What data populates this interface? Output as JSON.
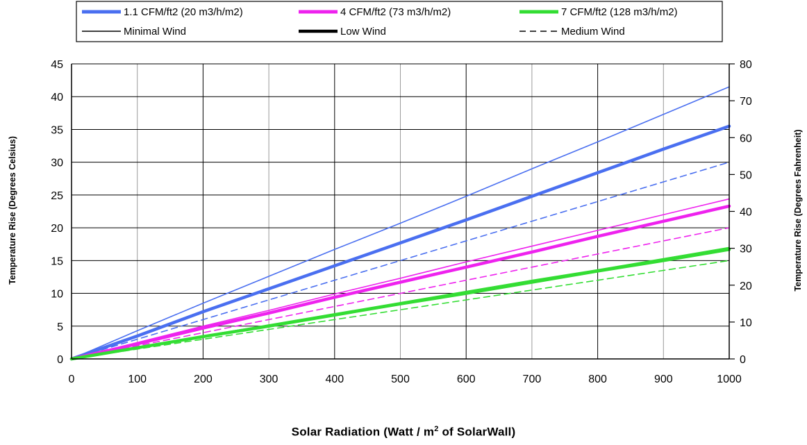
{
  "chart_data": {
    "type": "line",
    "xlabel_main": "Solar Radiation (Watt / m",
    "xlabel_sup": "2",
    "xlabel_tail": " of SolarWall)",
    "ylabel_left": "Temperature Rise (Degrees Celsius)",
    "ylabel_right": "Temperature Rise (Degrees Fahrenheit)",
    "xlim": [
      0,
      1000
    ],
    "ylim_left": [
      0,
      45
    ],
    "ylim_right": [
      0,
      80
    ],
    "x_ticks": [
      "0",
      "100",
      "200",
      "300",
      "400",
      "500",
      "600",
      "700",
      "800",
      "900",
      "1000"
    ],
    "y_ticks_left": [
      "0",
      "5",
      "10",
      "15",
      "20",
      "25",
      "30",
      "35",
      "40",
      "45"
    ],
    "y_ticks_right": [
      "0",
      "10",
      "20",
      "30",
      "40",
      "50",
      "60",
      "70",
      "80"
    ],
    "grid": true,
    "legend": {
      "placement": "top",
      "flow_items": [
        {
          "label": "1.1 CFM/ft2 (20 m3/h/m2)",
          "color": "#4a6ff0"
        },
        {
          "label": "4 CFM/ft2 (73 m3/h/m2)",
          "color": "#ee22ee"
        },
        {
          "label": "7 CFM/ft2 (128 m3/h/m2)",
          "color": "#33dd33"
        }
      ],
      "wind_items": [
        {
          "label": "Minimal Wind",
          "style": "thin"
        },
        {
          "label": "Low Wind",
          "style": "thick"
        },
        {
          "label": "Medium Wind",
          "style": "dashed"
        }
      ]
    },
    "series": [
      {
        "flow": "1.1 CFM/ft2 (20 m3/h/m2)",
        "wind": "Minimal Wind",
        "color": "#4a6ff0",
        "style": "thin",
        "x": [
          0,
          100,
          200,
          300,
          400,
          500,
          600,
          700,
          800,
          900,
          1000
        ],
        "y": [
          0,
          4.3,
          8.5,
          12.6,
          16.7,
          20.7,
          24.8,
          29.0,
          33.1,
          37.3,
          41.5
        ]
      },
      {
        "flow": "1.1 CFM/ft2 (20 m3/h/m2)",
        "wind": "Low Wind",
        "color": "#4a6ff0",
        "style": "thick",
        "x": [
          0,
          100,
          200,
          300,
          400,
          500,
          600,
          700,
          800,
          900,
          1000
        ],
        "y": [
          0,
          3.5,
          7.2,
          10.7,
          14.2,
          17.7,
          21.2,
          24.8,
          28.4,
          32.0,
          35.5
        ]
      },
      {
        "flow": "1.1 CFM/ft2 (20 m3/h/m2)",
        "wind": "Medium Wind",
        "color": "#4a6ff0",
        "style": "dashed",
        "x": [
          0,
          100,
          200,
          300,
          400,
          500,
          600,
          700,
          800,
          900,
          1000
        ],
        "y": [
          0,
          3.0,
          6.0,
          9.0,
          12.0,
          15.0,
          18.0,
          21.0,
          24.0,
          27.0,
          30.0
        ]
      },
      {
        "flow": "4 CFM/ft2 (73 m3/h/m2)",
        "wind": "Minimal Wind",
        "color": "#ee22ee",
        "style": "thin",
        "x": [
          0,
          100,
          200,
          300,
          400,
          500,
          600,
          700,
          800,
          900,
          1000
        ],
        "y": [
          0,
          2.5,
          5.0,
          7.4,
          9.9,
          12.3,
          14.8,
          17.2,
          19.6,
          22.0,
          24.4
        ]
      },
      {
        "flow": "4 CFM/ft2 (73 m3/h/m2)",
        "wind": "Low Wind",
        "color": "#ee22ee",
        "style": "thick",
        "x": [
          0,
          100,
          200,
          300,
          400,
          500,
          600,
          700,
          800,
          900,
          1000
        ],
        "y": [
          0,
          2.3,
          4.7,
          7.0,
          9.4,
          11.7,
          14.0,
          16.3,
          18.7,
          21.0,
          23.3
        ]
      },
      {
        "flow": "4 CFM/ft2 (73 m3/h/m2)",
        "wind": "Medium Wind",
        "color": "#ee22ee",
        "style": "dashed",
        "x": [
          0,
          100,
          200,
          300,
          400,
          500,
          600,
          700,
          800,
          900,
          1000
        ],
        "y": [
          0,
          2.0,
          4.0,
          6.0,
          8.0,
          10.0,
          12.0,
          14.0,
          16.0,
          18.0,
          20.0
        ]
      },
      {
        "flow": "7 CFM/ft2 (128 m3/h/m2)",
        "wind": "Minimal Wind",
        "color": "#33dd33",
        "style": "thin",
        "x": [
          0,
          100,
          200,
          300,
          400,
          500,
          600,
          700,
          800,
          900,
          1000
        ],
        "y": [
          0,
          1.75,
          3.5,
          5.2,
          6.9,
          8.6,
          10.3,
          12.0,
          13.6,
          15.3,
          17.0
        ]
      },
      {
        "flow": "7 CFM/ft2 (128 m3/h/m2)",
        "wind": "Low Wind",
        "color": "#33dd33",
        "style": "thick",
        "x": [
          0,
          100,
          200,
          300,
          400,
          500,
          600,
          700,
          800,
          900,
          1000
        ],
        "y": [
          0,
          1.7,
          3.4,
          5.0,
          6.7,
          8.4,
          10.0,
          11.7,
          13.4,
          15.0,
          16.7
        ]
      },
      {
        "flow": "7 CFM/ft2 (128 m3/h/m2)",
        "wind": "Medium Wind",
        "color": "#33dd33",
        "style": "dashed",
        "x": [
          0,
          100,
          200,
          300,
          400,
          500,
          600,
          700,
          800,
          900,
          1000
        ],
        "y": [
          0,
          1.5,
          3.0,
          4.5,
          6.0,
          7.5,
          9.0,
          10.5,
          12.0,
          13.5,
          15.0
        ]
      }
    ]
  }
}
